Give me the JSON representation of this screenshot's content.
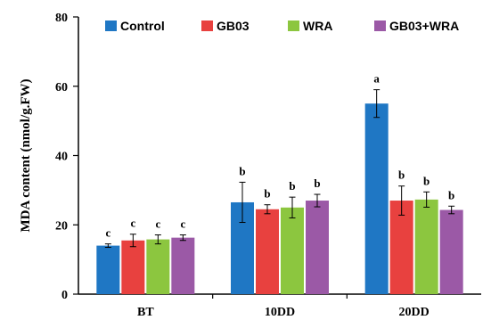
{
  "chart_data": {
    "type": "bar",
    "categories": [
      "BT",
      "10DD",
      "20DD"
    ],
    "ylabel": "MDA content (nmol/g.FW)",
    "xlabel": "",
    "ylim": [
      0,
      80
    ],
    "yticks": [
      0,
      20,
      40,
      60,
      80
    ],
    "grid": false,
    "legend_position": "top",
    "series": [
      {
        "name": "Control",
        "color": "#1f77c4",
        "values": [
          14.0,
          26.5,
          55.0
        ],
        "errors": [
          0.5,
          5.8,
          4.0
        ],
        "labels": [
          "c",
          "b",
          "a"
        ]
      },
      {
        "name": "GB03",
        "color": "#e8413f",
        "values": [
          15.5,
          24.5,
          27.0
        ],
        "errors": [
          1.8,
          1.3,
          4.2
        ],
        "labels": [
          "c",
          "b",
          "b"
        ]
      },
      {
        "name": "WRA",
        "color": "#8cc63f",
        "values": [
          15.8,
          25.0,
          27.3
        ],
        "errors": [
          1.3,
          3.0,
          2.2
        ],
        "labels": [
          "c",
          "b",
          "b"
        ]
      },
      {
        "name": "GB03+WRA",
        "color": "#9b59a6",
        "values": [
          16.3,
          27.0,
          24.3
        ],
        "errors": [
          0.8,
          1.8,
          1.1
        ],
        "labels": [
          "c",
          "b",
          "b"
        ]
      }
    ]
  }
}
